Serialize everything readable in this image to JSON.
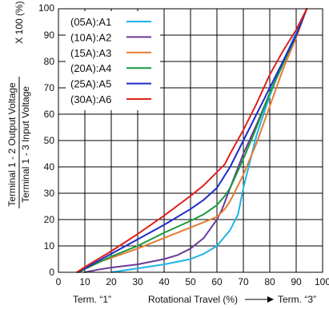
{
  "chart_data": {
    "type": "line",
    "xlim": [
      0,
      100
    ],
    "ylim": [
      0,
      100
    ],
    "x_ticks": [
      "0",
      "10",
      "20",
      "30",
      "40",
      "50",
      "60",
      "70",
      "80",
      "90",
      "100"
    ],
    "y_ticks": [
      "0",
      "10",
      "20",
      "30",
      "40",
      "50",
      "60",
      "70",
      "80",
      "90",
      "100"
    ],
    "grid": true,
    "legend_position": "top-left",
    "ylabel_numerator": "Terminal 1 - 2 Output Voltage",
    "ylabel_denominator": "Terminal 1 - 3 Input Voltage",
    "ylabel_suffix": "X 100 (%)",
    "ylabel_arrow": "→",
    "xlabel_left": "Term. “1”",
    "xlabel_center": "Rotational Travel (%)",
    "xlabel_right": "Term. “3”",
    "series": [
      {
        "name": "(05A):A1",
        "color": "#1fb4e6",
        "points": [
          [
            20,
            0
          ],
          [
            30,
            1.5
          ],
          [
            40,
            3
          ],
          [
            50,
            5
          ],
          [
            55,
            7
          ],
          [
            60,
            10
          ],
          [
            65,
            16
          ],
          [
            68,
            22
          ],
          [
            70,
            32
          ],
          [
            72,
            40
          ],
          [
            75,
            52
          ],
          [
            80,
            67
          ],
          [
            85,
            80
          ],
          [
            90,
            91
          ],
          [
            94,
            100
          ]
        ]
      },
      {
        "name": "(10A):A2",
        "color": "#6a3a96",
        "points": [
          [
            10,
            0
          ],
          [
            15,
            1
          ],
          [
            20,
            1.8
          ],
          [
            30,
            3
          ],
          [
            40,
            5
          ],
          [
            45,
            6.5
          ],
          [
            50,
            9
          ],
          [
            55,
            13
          ],
          [
            60,
            20
          ],
          [
            62,
            24
          ],
          [
            65,
            32
          ],
          [
            70,
            45
          ],
          [
            75,
            56
          ],
          [
            80,
            68
          ],
          [
            85,
            79
          ],
          [
            90,
            90
          ],
          [
            94,
            100
          ]
        ]
      },
      {
        "name": "(15A):A3",
        "color": "#e57a35",
        "points": [
          [
            7,
            0
          ],
          [
            10,
            2
          ],
          [
            20,
            5.5
          ],
          [
            30,
            9
          ],
          [
            40,
            13
          ],
          [
            50,
            17
          ],
          [
            55,
            19
          ],
          [
            60,
            21
          ],
          [
            63,
            24
          ],
          [
            65,
            27
          ],
          [
            70,
            37
          ],
          [
            75,
            49
          ],
          [
            80,
            63
          ],
          [
            85,
            77
          ],
          [
            90,
            89
          ],
          [
            94,
            100
          ]
        ]
      },
      {
        "name": "(20A):A4",
        "color": "#1a9a3c",
        "points": [
          [
            8,
            0
          ],
          [
            10,
            1.2
          ],
          [
            20,
            6
          ],
          [
            30,
            10
          ],
          [
            40,
            15
          ],
          [
            50,
            19.5
          ],
          [
            55,
            22
          ],
          [
            60,
            25.5
          ],
          [
            63,
            29
          ],
          [
            65,
            32
          ],
          [
            70,
            43
          ],
          [
            75,
            55
          ],
          [
            80,
            68
          ],
          [
            85,
            79
          ],
          [
            90,
            90
          ],
          [
            94,
            100
          ]
        ]
      },
      {
        "name": "(25A):A5",
        "color": "#1b2cc9",
        "points": [
          [
            7,
            0
          ],
          [
            10,
            1.5
          ],
          [
            20,
            7
          ],
          [
            30,
            12.5
          ],
          [
            40,
            18
          ],
          [
            50,
            24
          ],
          [
            55,
            27.5
          ],
          [
            60,
            32
          ],
          [
            65,
            40
          ],
          [
            70,
            50
          ],
          [
            75,
            60
          ],
          [
            80,
            70
          ],
          [
            85,
            80
          ],
          [
            90,
            90
          ],
          [
            94,
            100
          ]
        ]
      },
      {
        "name": "(30A):A6",
        "color": "#e0201d",
        "points": [
          [
            7,
            0
          ],
          [
            10,
            2
          ],
          [
            20,
            8
          ],
          [
            30,
            14.5
          ],
          [
            40,
            21.5
          ],
          [
            50,
            29
          ],
          [
            55,
            33
          ],
          [
            60,
            38
          ],
          [
            63,
            41
          ],
          [
            65,
            45
          ],
          [
            70,
            54
          ],
          [
            75,
            64
          ],
          [
            80,
            75
          ],
          [
            85,
            84
          ],
          [
            90,
            92
          ],
          [
            94,
            100
          ]
        ]
      }
    ]
  }
}
